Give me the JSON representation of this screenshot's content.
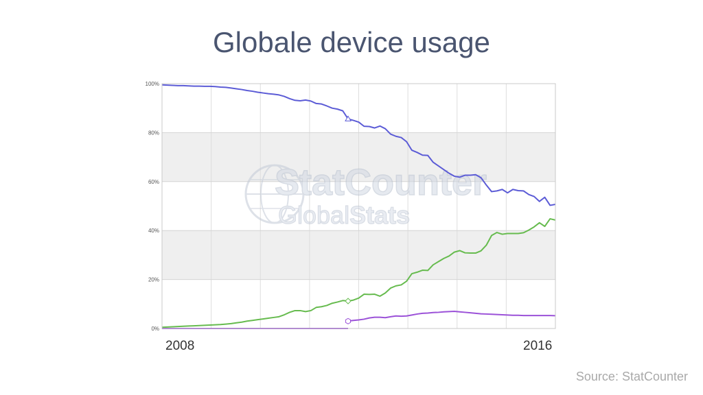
{
  "slide": {
    "title": "Globale device usage",
    "source": "Source: StatCounter"
  },
  "watermark": {
    "line1": "StatCounter",
    "line2_a": "Global",
    "line2_b": "Stats"
  },
  "chart_data": {
    "type": "line",
    "title": "",
    "xlabel": "",
    "ylabel": "",
    "x_start_label": "2008",
    "x_end_label": "2016",
    "ylim": [
      0,
      100
    ],
    "y_ticks": [
      "0%",
      "20%",
      "40%",
      "60%",
      "80%",
      "100%"
    ],
    "grid": true,
    "series": [
      {
        "color": "#5b5bd6",
        "marker": "triangle",
        "values": [
          99.5,
          99.4,
          99.3,
          99.2,
          99.2,
          99.1,
          99,
          99,
          98.9,
          98.9,
          98.8,
          98.6,
          98.5,
          98.2,
          97.9,
          97.6,
          97.2,
          96.9,
          96.5,
          96.2,
          95.9,
          95.7,
          95.4,
          94.8,
          93.9,
          93.2,
          93.0,
          93.3,
          92.9,
          91.9,
          91.7,
          90.9,
          90.0,
          89.6,
          88.9,
          85.6,
          85.0,
          84.3,
          82.6,
          82.5,
          81.9,
          82.7,
          81.6,
          79.4,
          78.5,
          78.0,
          76.3,
          72.8,
          71.9,
          70.8,
          70.7,
          67.9,
          66.4,
          64.9,
          63.4,
          62.2,
          61.8,
          62.6,
          62.6,
          62.8,
          61.6,
          58.6,
          55.9,
          56.2,
          56.8,
          55.4,
          56.8,
          56.3,
          56.2,
          54.7,
          53.9,
          51.9,
          53.6,
          50.3,
          50.7
        ]
      },
      {
        "color": "#66bb4e",
        "marker": "diamond",
        "values": [
          0.5,
          0.6,
          0.7,
          0.8,
          0.9,
          1.0,
          1.1,
          1.2,
          1.3,
          1.4,
          1.5,
          1.6,
          1.8,
          2.0,
          2.3,
          2.6,
          3.0,
          3.3,
          3.6,
          3.9,
          4.2,
          4.5,
          4.8,
          5.6,
          6.6,
          7.3,
          7.3,
          6.9,
          7.3,
          8.6,
          8.9,
          9.4,
          10.3,
          10.8,
          11.4,
          11.2,
          11.6,
          12.4,
          14.0,
          13.9,
          14.0,
          13.2,
          14.5,
          16.5,
          17.4,
          17.8,
          19.3,
          22.4,
          23.0,
          23.8,
          23.7,
          26.0,
          27.3,
          28.6,
          29.6,
          31.2,
          31.8,
          30.9,
          30.8,
          30.8,
          31.7,
          34.0,
          38.0,
          39.2,
          38.5,
          38.8,
          38.8,
          38.8,
          39.1,
          40.2,
          41.5,
          43.2,
          41.7,
          44.8,
          44.3
        ]
      },
      {
        "color": "#9b51d8",
        "marker": "hexagon",
        "values": [
          0,
          0,
          0,
          0,
          0,
          0,
          0,
          0,
          0,
          0,
          0,
          0,
          0,
          0,
          0,
          0,
          0,
          0,
          0,
          0,
          0,
          0,
          0,
          0,
          0,
          0,
          0,
          0,
          0,
          0,
          0,
          0,
          0,
          0,
          0,
          3.0,
          3.3,
          3.5,
          3.8,
          4.3,
          4.6,
          4.6,
          4.4,
          4.8,
          5.1,
          5.0,
          5.1,
          5.5,
          5.9,
          6.2,
          6.3,
          6.5,
          6.6,
          6.8,
          6.9,
          7.0,
          6.8,
          6.6,
          6.4,
          6.2,
          6.0,
          5.9,
          5.8,
          5.7,
          5.6,
          5.5,
          5.4,
          5.4,
          5.3,
          5.3,
          5.3,
          5.3,
          5.3,
          5.3,
          5.2
        ]
      }
    ]
  }
}
